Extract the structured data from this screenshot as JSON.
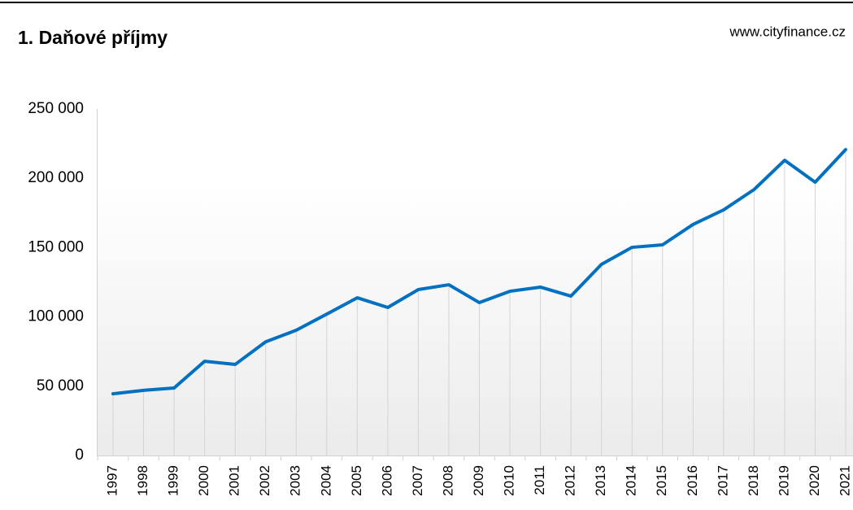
{
  "chart_data": {
    "type": "line",
    "title": "1. Daňové příjmy",
    "source": "www.cityfinance.cz",
    "categories": [
      "1997",
      "1998",
      "1999",
      "2000",
      "2001",
      "2002",
      "2003",
      "2004",
      "2005",
      "2006",
      "2007",
      "2008",
      "2009",
      "2010",
      "2011",
      "2012",
      "2013",
      "2014",
      "2015",
      "2016",
      "2017",
      "2018",
      "2019",
      "2020",
      "2021"
    ],
    "series": [
      {
        "name": "Daňové příjmy",
        "color": "#0070c0",
        "values": [
          44500,
          47000,
          48700,
          68000,
          65700,
          82000,
          90400,
          102000,
          113800,
          106800,
          119700,
          123200,
          110300,
          118500,
          121500,
          115000,
          137900,
          150200,
          152000,
          166700,
          177200,
          191900,
          213000,
          197200,
          220700
        ]
      }
    ],
    "ylim": [
      0,
      250000
    ],
    "yticks": [
      {
        "value": 0,
        "label": "0"
      },
      {
        "value": 50000,
        "label": "50 000"
      },
      {
        "value": 100000,
        "label": "100 000"
      },
      {
        "value": 150000,
        "label": "150 000"
      },
      {
        "value": 200000,
        "label": "200 000"
      },
      {
        "value": 250000,
        "label": "250 000"
      }
    ]
  }
}
